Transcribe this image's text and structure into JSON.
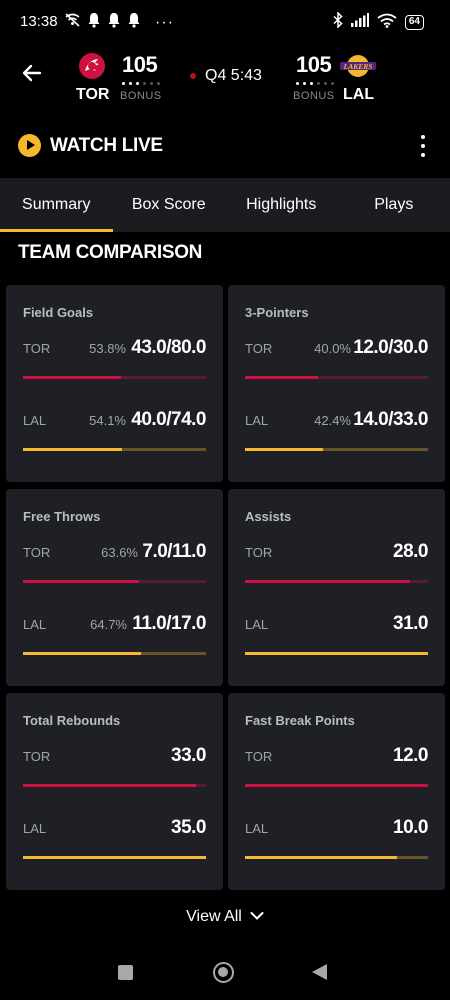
{
  "status_bar": {
    "time": "13:38",
    "dots": "···",
    "battery": "64",
    "icons": [
      "wifi-off-icon",
      "bell-icon",
      "bell-icon",
      "bell-icon",
      "bluetooth-icon",
      "signal-icon",
      "wifi-icon",
      "battery-icon"
    ]
  },
  "game": {
    "home": {
      "abbr": "TOR",
      "score": "105",
      "bonus": "BONUS",
      "logo": "raptors-logo",
      "color": "#ce1141"
    },
    "away": {
      "abbr": "LAL",
      "score": "105",
      "bonus": "BONUS",
      "logo": "lakers-logo",
      "color": "#f5b72c"
    },
    "clock": "Q4 5:43"
  },
  "watch_live": {
    "label": "WATCH LIVE",
    "icon": "play-icon",
    "menu_icon": "more-vert-icon"
  },
  "tabs": [
    {
      "label": "Summary",
      "active": true
    },
    {
      "label": "Box Score",
      "active": false
    },
    {
      "label": "Highlights",
      "active": false
    },
    {
      "label": "Plays",
      "active": false
    }
  ],
  "section_title": "TEAM COMPARISON",
  "cards": [
    {
      "title": "Field Goals",
      "tor": {
        "team": "TOR",
        "pct": "53.8%",
        "value": "43.0/80.0",
        "share": 0.538
      },
      "lal": {
        "team": "LAL",
        "pct": "54.1%",
        "value": "40.0/74.0",
        "share": 0.541
      }
    },
    {
      "title": "3-Pointers",
      "tor": {
        "team": "TOR",
        "pct": "40.0%",
        "value": "12.0/30.0",
        "share": 0.4
      },
      "lal": {
        "team": "LAL",
        "pct": "42.4%",
        "value": "14.0/33.0",
        "share": 0.424
      }
    },
    {
      "title": "Free Throws",
      "tor": {
        "team": "TOR",
        "pct": "63.6%",
        "value": "7.0/11.0",
        "share": 0.636
      },
      "lal": {
        "team": "LAL",
        "pct": "64.7%",
        "value": "11.0/17.0",
        "share": 0.647
      }
    },
    {
      "title": "Assists",
      "tor": {
        "team": "TOR",
        "pct": "",
        "value": "28.0",
        "share": 0.9
      },
      "lal": {
        "team": "LAL",
        "pct": "",
        "value": "31.0",
        "share": 1.0
      }
    },
    {
      "title": "Total Rebounds",
      "tor": {
        "team": "TOR",
        "pct": "",
        "value": "33.0",
        "share": 0.943
      },
      "lal": {
        "team": "LAL",
        "pct": "",
        "value": "35.0",
        "share": 1.0
      }
    },
    {
      "title": "Fast Break Points",
      "tor": {
        "team": "TOR",
        "pct": "",
        "value": "12.0",
        "share": 1.0
      },
      "lal": {
        "team": "LAL",
        "pct": "",
        "value": "10.0",
        "share": 0.833
      }
    }
  ],
  "view_all": {
    "label": "View All",
    "icon": "chevron-down-icon"
  },
  "nav": {
    "icons": [
      "recents-icon",
      "home-icon",
      "back-icon"
    ]
  }
}
